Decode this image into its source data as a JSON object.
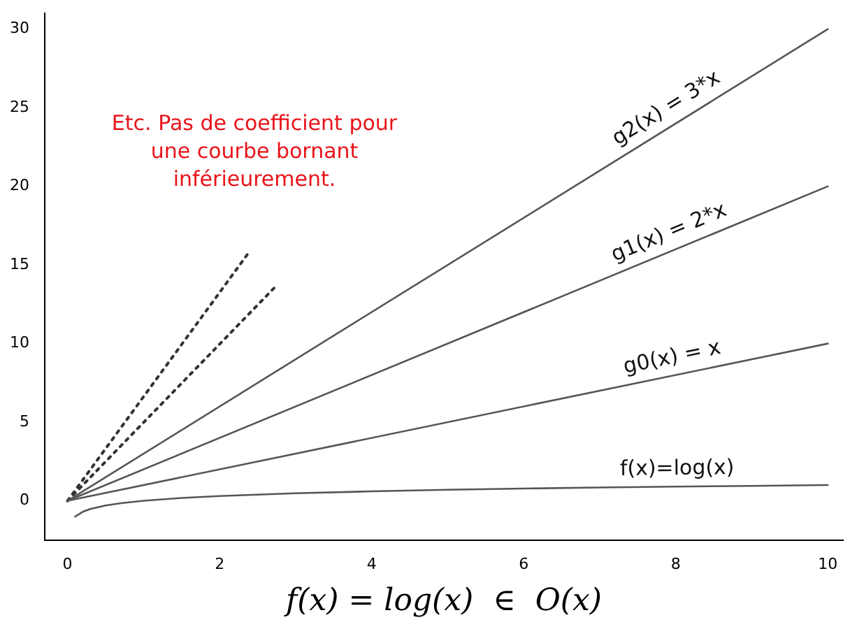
{
  "chart_data": {
    "type": "line",
    "xlabel": "f(x) = log(x)  ∈  O(x)",
    "xlim": [
      -0.3,
      10.2
    ],
    "ylim": [
      -2.5,
      31
    ],
    "xticks": [
      0,
      2,
      4,
      6,
      8,
      10
    ],
    "yticks": [
      0,
      5,
      10,
      15,
      20,
      25,
      30
    ],
    "grid": false,
    "legend": false,
    "marker": "none",
    "annotations": [
      "Etc. Pas de coefficient pour une courbe bornant inférieurement."
    ],
    "series": [
      {
        "name": "g2(x) = 3*x",
        "color": "#555555",
        "x": [
          0,
          10
        ],
        "values": [
          0,
          30
        ]
      },
      {
        "name": "g1(x) = 2*x",
        "color": "#555555",
        "x": [
          0,
          10
        ],
        "values": [
          0,
          20
        ]
      },
      {
        "name": "g0(x) = x",
        "color": "#555555",
        "x": [
          0,
          10
        ],
        "values": [
          0,
          10
        ]
      },
      {
        "name": "f(x)=log(x)",
        "color": "#555555",
        "x": [
          0.1,
          0.2,
          0.3,
          0.5,
          0.7,
          1,
          1.5,
          2,
          3,
          4,
          5,
          6,
          7,
          8,
          9,
          10
        ],
        "values": [
          -1,
          -0.7,
          -0.52,
          -0.3,
          -0.15,
          0,
          0.18,
          0.3,
          0.48,
          0.6,
          0.7,
          0.78,
          0.85,
          0.9,
          0.95,
          1
        ]
      },
      {
        "color": "#333333",
        "line_style": "dotted",
        "x": [
          0,
          2.4
        ],
        "values": [
          0,
          15.9
        ]
      },
      {
        "color": "#333333",
        "line_style": "dotted",
        "x": [
          0,
          2.75
        ],
        "values": [
          0,
          13.7
        ]
      }
    ]
  }
}
